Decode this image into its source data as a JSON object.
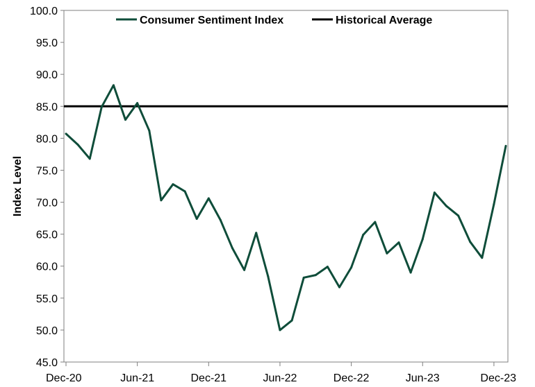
{
  "chart_data": {
    "type": "line",
    "ylabel": "Index Level",
    "xlabel": "",
    "ylim": [
      45.0,
      100.0
    ],
    "ytick_step": 5,
    "yticks": [
      "45.0",
      "50.0",
      "55.0",
      "60.0",
      "65.0",
      "70.0",
      "75.0",
      "80.0",
      "85.0",
      "90.0",
      "95.0",
      "100.0"
    ],
    "xtick_labels": [
      "Dec-20",
      "Jun-21",
      "Dec-21",
      "Jun-22",
      "Dec-22",
      "Jun-23",
      "Dec-23"
    ],
    "x": [
      "Dec-20",
      "Jan-21",
      "Feb-21",
      "Mar-21",
      "Apr-21",
      "May-21",
      "Jun-21",
      "Jul-21",
      "Aug-21",
      "Sep-21",
      "Oct-21",
      "Nov-21",
      "Dec-21",
      "Jan-22",
      "Feb-22",
      "Mar-22",
      "Apr-22",
      "May-22",
      "Jun-22",
      "Jul-22",
      "Aug-22",
      "Sep-22",
      "Oct-22",
      "Nov-22",
      "Dec-22",
      "Jan-23",
      "Feb-23",
      "Mar-23",
      "Apr-23",
      "May-23",
      "Jun-23",
      "Jul-23",
      "Aug-23",
      "Sep-23",
      "Oct-23",
      "Nov-23",
      "Dec-23",
      "Jan-24"
    ],
    "series": [
      {
        "name": "Consumer Sentiment Index",
        "color": "#0f4d3a",
        "values": [
          80.7,
          79.0,
          76.8,
          84.9,
          88.3,
          82.9,
          85.5,
          81.2,
          70.3,
          72.8,
          71.7,
          67.4,
          70.6,
          67.2,
          62.8,
          59.4,
          65.2,
          58.4,
          50.0,
          51.5,
          58.2,
          58.6,
          59.9,
          56.7,
          59.8,
          64.9,
          66.9,
          62.0,
          63.7,
          59.0,
          64.2,
          71.5,
          69.4,
          67.9,
          63.8,
          61.3,
          69.7,
          78.8
        ]
      },
      {
        "name": "Historical Average",
        "color": "#000000",
        "value": 85.0
      }
    ],
    "legend": "top",
    "grid": false
  }
}
